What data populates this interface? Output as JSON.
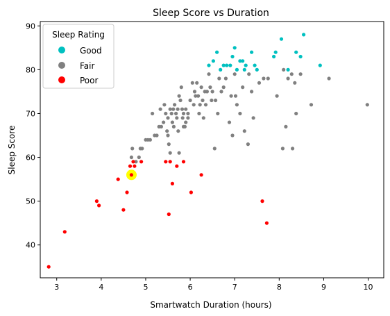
{
  "chart_data": {
    "type": "scatter",
    "title": "Sleep Score vs Duration",
    "xlabel": "Smartwatch Duration (hours)",
    "ylabel": "Sleep Score",
    "xlim": [
      2.63,
      10.35
    ],
    "ylim": [
      32.5,
      91
    ],
    "xticks": [
      3,
      4,
      5,
      6,
      7,
      8,
      9,
      10
    ],
    "yticks": [
      40,
      50,
      60,
      70,
      80,
      90
    ],
    "grid": false,
    "legend": {
      "title": "Sleep Rating",
      "placement": "top-left",
      "entries": [
        "Good",
        "Fair",
        "Poor"
      ]
    },
    "colors": {
      "Good": "#00c0c0",
      "Fair": "#808080",
      "Poor": "#ff0000",
      "highlight": "#ffff00"
    },
    "highlight": {
      "x": 4.68,
      "y": 56
    },
    "series": [
      {
        "name": "Good",
        "points": [
          [
            6.42,
            81
          ],
          [
            6.52,
            82
          ],
          [
            6.6,
            84
          ],
          [
            6.68,
            80
          ],
          [
            6.75,
            81
          ],
          [
            6.82,
            81
          ],
          [
            6.9,
            81
          ],
          [
            6.95,
            83
          ],
          [
            7.0,
            85
          ],
          [
            7.05,
            80
          ],
          [
            7.12,
            82
          ],
          [
            7.18,
            82
          ],
          [
            7.22,
            80
          ],
          [
            7.25,
            81
          ],
          [
            7.38,
            84
          ],
          [
            7.45,
            81
          ],
          [
            7.5,
            80
          ],
          [
            7.88,
            83
          ],
          [
            7.92,
            84
          ],
          [
            8.05,
            87
          ],
          [
            8.2,
            80
          ],
          [
            8.38,
            84
          ],
          [
            8.48,
            83
          ],
          [
            8.55,
            88
          ],
          [
            8.92,
            81
          ]
        ]
      },
      {
        "name": "Fair",
        "points": [
          [
            4.68,
            60
          ],
          [
            4.7,
            62
          ],
          [
            4.78,
            59
          ],
          [
            4.85,
            60
          ],
          [
            4.88,
            62
          ],
          [
            4.92,
            62
          ],
          [
            5.0,
            64
          ],
          [
            5.05,
            64
          ],
          [
            5.1,
            64
          ],
          [
            5.15,
            70
          ],
          [
            5.2,
            65
          ],
          [
            5.25,
            65
          ],
          [
            5.3,
            67
          ],
          [
            5.33,
            71
          ],
          [
            5.35,
            67
          ],
          [
            5.4,
            68
          ],
          [
            5.42,
            72
          ],
          [
            5.45,
            70
          ],
          [
            5.48,
            66
          ],
          [
            5.5,
            69
          ],
          [
            5.5,
            65
          ],
          [
            5.52,
            63
          ],
          [
            5.55,
            71
          ],
          [
            5.55,
            61
          ],
          [
            5.58,
            70
          ],
          [
            5.6,
            68
          ],
          [
            5.62,
            71
          ],
          [
            5.63,
            67
          ],
          [
            5.65,
            72
          ],
          [
            5.68,
            70
          ],
          [
            5.7,
            69
          ],
          [
            5.72,
            71
          ],
          [
            5.73,
            66
          ],
          [
            5.75,
            74
          ],
          [
            5.75,
            61
          ],
          [
            5.78,
            73
          ],
          [
            5.8,
            76
          ],
          [
            5.82,
            71
          ],
          [
            5.83,
            69
          ],
          [
            5.85,
            70
          ],
          [
            5.85,
            67
          ],
          [
            5.88,
            67
          ],
          [
            5.9,
            68
          ],
          [
            5.9,
            71
          ],
          [
            5.95,
            69
          ],
          [
            5.95,
            70
          ],
          [
            6.0,
            73
          ],
          [
            6.05,
            77
          ],
          [
            6.08,
            72
          ],
          [
            6.1,
            75
          ],
          [
            6.12,
            74
          ],
          [
            6.15,
            77
          ],
          [
            6.18,
            74
          ],
          [
            6.2,
            70
          ],
          [
            6.22,
            72
          ],
          [
            6.25,
            76
          ],
          [
            6.28,
            73
          ],
          [
            6.3,
            69
          ],
          [
            6.33,
            75
          ],
          [
            6.35,
            72
          ],
          [
            6.38,
            75
          ],
          [
            6.42,
            79
          ],
          [
            6.45,
            76
          ],
          [
            6.48,
            73
          ],
          [
            6.5,
            75
          ],
          [
            6.55,
            62
          ],
          [
            6.57,
            73
          ],
          [
            6.62,
            70
          ],
          [
            6.65,
            78
          ],
          [
            6.7,
            75
          ],
          [
            6.75,
            76
          ],
          [
            6.8,
            78
          ],
          [
            6.88,
            68
          ],
          [
            6.92,
            74
          ],
          [
            6.95,
            65
          ],
          [
            7.0,
            79
          ],
          [
            7.02,
            74
          ],
          [
            7.05,
            72
          ],
          [
            7.12,
            70
          ],
          [
            7.18,
            76
          ],
          [
            7.22,
            66
          ],
          [
            7.3,
            63
          ],
          [
            7.32,
            79
          ],
          [
            7.38,
            75
          ],
          [
            7.42,
            69
          ],
          [
            7.55,
            77
          ],
          [
            7.65,
            78
          ],
          [
            7.75,
            78
          ],
          [
            7.95,
            74
          ],
          [
            8.08,
            62
          ],
          [
            8.1,
            80
          ],
          [
            8.15,
            67
          ],
          [
            8.2,
            78
          ],
          [
            8.28,
            79
          ],
          [
            8.3,
            62
          ],
          [
            8.35,
            77
          ],
          [
            8.38,
            70
          ],
          [
            8.48,
            79
          ],
          [
            8.72,
            72
          ],
          [
            9.12,
            78
          ],
          [
            9.98,
            72
          ]
        ]
      },
      {
        "name": "Poor",
        "points": [
          [
            2.82,
            35
          ],
          [
            3.18,
            43
          ],
          [
            3.9,
            50
          ],
          [
            3.95,
            49
          ],
          [
            4.38,
            55
          ],
          [
            4.5,
            48
          ],
          [
            4.58,
            52
          ],
          [
            4.65,
            58
          ],
          [
            4.68,
            56
          ],
          [
            4.72,
            59
          ],
          [
            4.75,
            58
          ],
          [
            4.9,
            59
          ],
          [
            5.45,
            59
          ],
          [
            5.52,
            47
          ],
          [
            5.55,
            59
          ],
          [
            5.6,
            54
          ],
          [
            5.7,
            58
          ],
          [
            5.85,
            59
          ],
          [
            6.02,
            52
          ],
          [
            6.25,
            56
          ],
          [
            7.62,
            50
          ],
          [
            7.72,
            45
          ]
        ]
      }
    ]
  }
}
